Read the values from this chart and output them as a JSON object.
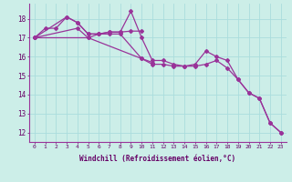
{
  "xlabel": "Windchill (Refroidissement éolien,°C)",
  "background_color": "#cceee8",
  "grid_color": "#aadddd",
  "line_color": "#993399",
  "xlim": [
    -0.5,
    23.5
  ],
  "ylim": [
    11.5,
    18.8
  ],
  "yticks": [
    12,
    13,
    14,
    15,
    16,
    17,
    18
  ],
  "xticks": [
    0,
    1,
    2,
    3,
    4,
    5,
    6,
    7,
    8,
    9,
    10,
    11,
    12,
    13,
    14,
    15,
    16,
    17,
    18,
    19,
    20,
    21,
    22,
    23
  ],
  "series": [
    {
      "x": [
        0,
        1,
        2,
        3,
        4,
        5,
        6,
        7,
        8,
        9,
        10
      ],
      "y": [
        17.0,
        17.5,
        17.5,
        18.1,
        17.8,
        17.2,
        17.2,
        17.3,
        17.3,
        17.35,
        17.35
      ]
    },
    {
      "x": [
        0,
        3,
        4,
        5,
        6,
        7,
        8,
        9,
        10,
        11,
        12,
        13,
        14,
        15,
        16,
        17,
        18,
        19,
        20,
        21,
        22,
        23
      ],
      "y": [
        17.0,
        18.1,
        17.8,
        17.2,
        17.2,
        17.3,
        17.3,
        18.4,
        17.0,
        15.8,
        15.8,
        15.6,
        15.5,
        15.6,
        16.3,
        16.0,
        15.8,
        14.8,
        14.1,
        13.8,
        12.5,
        12.0
      ]
    },
    {
      "x": [
        0,
        4,
        5,
        6,
        7,
        8,
        10,
        11
      ],
      "y": [
        17.0,
        17.5,
        17.0,
        17.2,
        17.2,
        17.2,
        15.9,
        15.7
      ]
    },
    {
      "x": [
        0,
        5,
        10,
        11,
        12,
        13,
        14,
        15,
        16,
        17,
        18,
        19,
        20,
        21,
        22,
        23
      ],
      "y": [
        17.0,
        17.0,
        15.9,
        15.6,
        15.6,
        15.5,
        15.5,
        15.5,
        15.6,
        15.8,
        15.4,
        14.8,
        14.1,
        13.8,
        12.5,
        12.0
      ]
    }
  ]
}
